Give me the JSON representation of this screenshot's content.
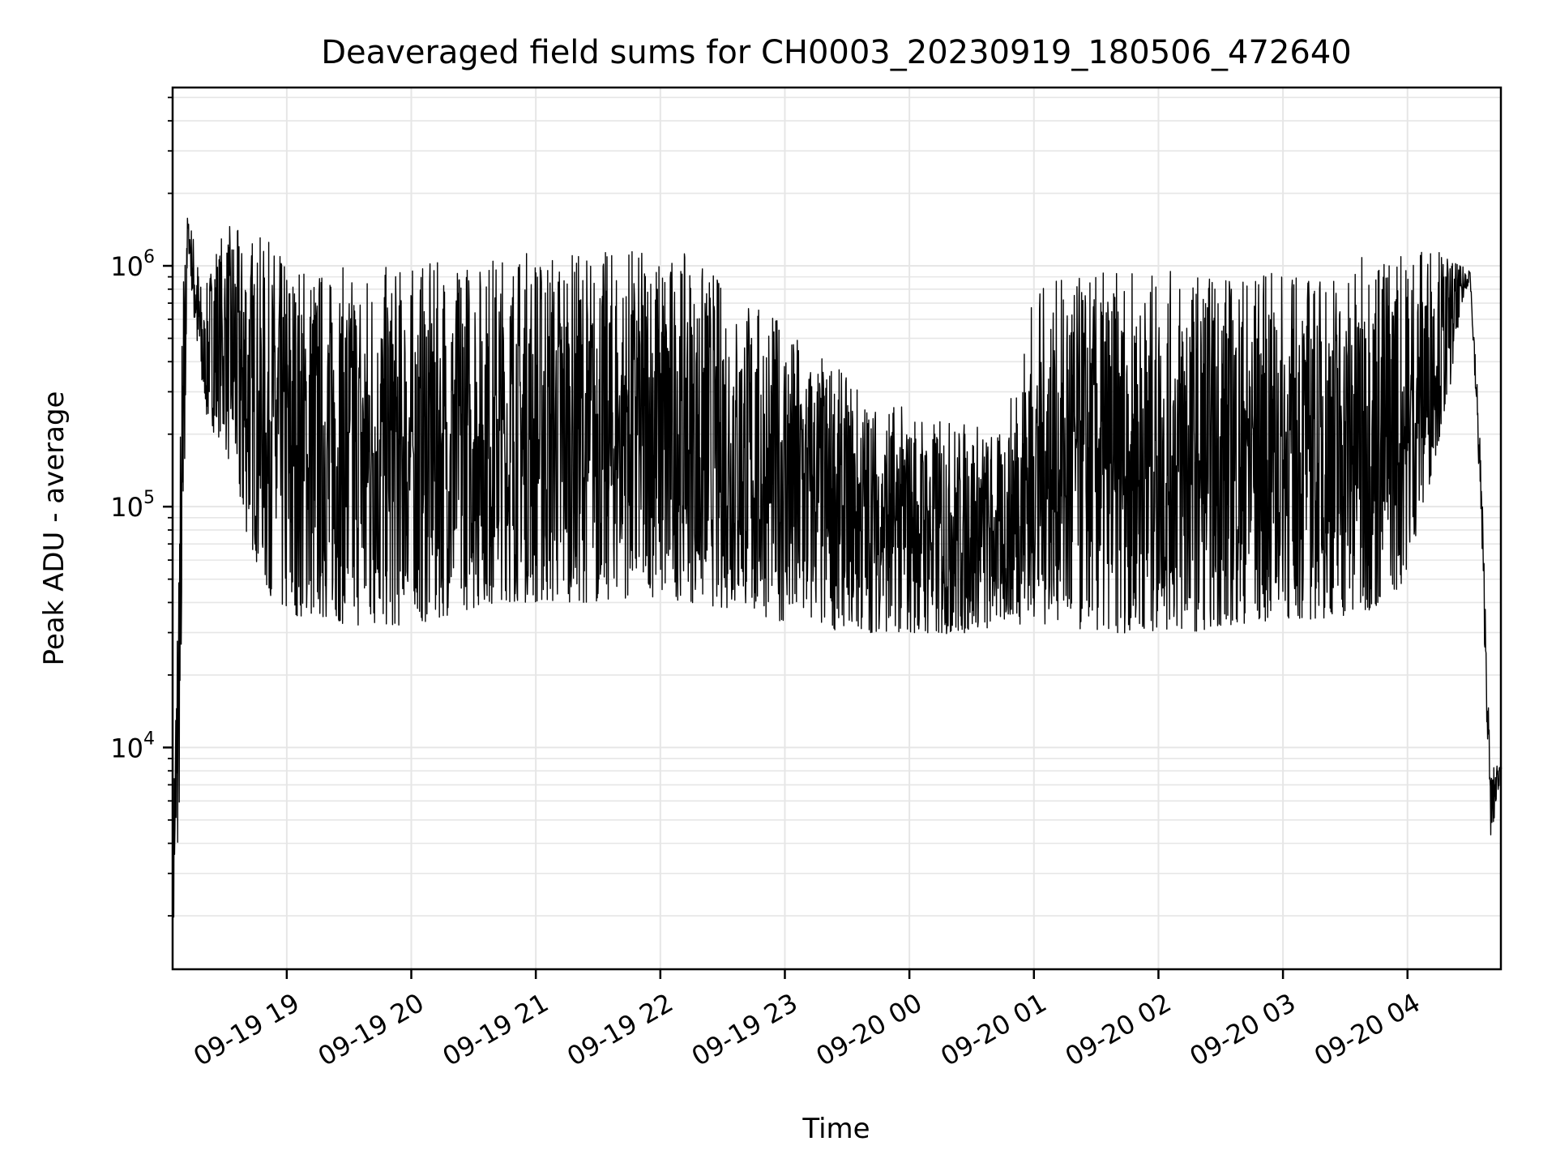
{
  "chart_data": {
    "type": "line",
    "title": "Deaveraged field sums for CH0003_20230919_180506_472640",
    "xlabel": "Time",
    "ylabel": "Peak ADU - average",
    "yscale": "log",
    "grid": true,
    "line_color": "#000000",
    "grid_color": "#e6e6e6",
    "xlim": [
      "2023-09-19 18:05",
      "2023-09-20 04:45"
    ],
    "ylim": [
      1200,
      5500000
    ],
    "xticks": [
      {
        "value": "2023-09-19 19:00",
        "label": "09-19 19"
      },
      {
        "value": "2023-09-19 20:00",
        "label": "09-19 20"
      },
      {
        "value": "2023-09-19 21:00",
        "label": "09-19 21"
      },
      {
        "value": "2023-09-19 22:00",
        "label": "09-19 22"
      },
      {
        "value": "2023-09-19 23:00",
        "label": "09-19 23"
      },
      {
        "value": "2023-09-20 00:00",
        "label": "09-20 00"
      },
      {
        "value": "2023-09-20 01:00",
        "label": "09-20 01"
      },
      {
        "value": "2023-09-20 02:00",
        "label": "09-20 02"
      },
      {
        "value": "2023-09-20 03:00",
        "label": "09-20 03"
      },
      {
        "value": "2023-09-20 04:00",
        "label": "09-20 04"
      }
    ],
    "yticks": [
      {
        "value": 10000,
        "base": "10",
        "exp": "4"
      },
      {
        "value": 100000,
        "base": "10",
        "exp": "5"
      },
      {
        "value": 1000000,
        "base": "10",
        "exp": "6"
      }
    ],
    "series": [
      {
        "x": [
          "2023-09-19 18:05",
          "2023-09-19 18:07",
          "2023-09-19 18:10",
          "2023-09-19 18:12",
          "2023-09-19 18:15",
          "2023-09-19 18:20",
          "2023-09-19 18:25",
          "2023-09-19 18:30",
          "2023-09-19 18:40",
          "2023-09-19 18:50",
          "2023-09-19 19:00",
          "2023-09-19 19:15",
          "2023-09-19 19:30",
          "2023-09-19 19:45",
          "2023-09-19 20:00",
          "2023-09-19 20:15",
          "2023-09-19 20:30",
          "2023-09-19 20:45",
          "2023-09-19 21:00",
          "2023-09-19 21:15",
          "2023-09-19 21:30",
          "2023-09-19 21:45",
          "2023-09-19 22:00",
          "2023-09-19 22:15",
          "2023-09-19 22:30",
          "2023-09-19 22:45",
          "2023-09-19 23:00",
          "2023-09-19 23:15",
          "2023-09-19 23:30",
          "2023-09-19 23:45",
          "2023-09-20 00:00",
          "2023-09-20 00:15",
          "2023-09-20 00:30",
          "2023-09-20 00:45",
          "2023-09-20 01:00",
          "2023-09-20 01:15",
          "2023-09-20 01:30",
          "2023-09-20 01:45",
          "2023-09-20 02:00",
          "2023-09-20 02:15",
          "2023-09-20 02:30",
          "2023-09-20 02:45",
          "2023-09-20 03:00",
          "2023-09-20 03:15",
          "2023-09-20 03:30",
          "2023-09-20 03:45",
          "2023-09-20 04:00",
          "2023-09-20 04:10",
          "2023-09-20 04:20",
          "2023-09-20 04:25",
          "2023-09-20 04:30",
          "2023-09-20 04:35",
          "2023-09-20 04:40",
          "2023-09-20 04:45"
        ],
        "upper": [
          6000,
          30000,
          1000000,
          1600000,
          1400000,
          700000,
          1300000,
          1500000,
          1400000,
          1300000,
          1100000,
          1000000,
          1000000,
          1000000,
          1000000,
          1050000,
          1100000,
          1150000,
          1200000,
          1200000,
          1150000,
          1200000,
          1200000,
          1100000,
          900000,
          700000,
          600000,
          450000,
          350000,
          280000,
          260000,
          230000,
          230000,
          200000,
          800000,
          900000,
          950000,
          950000,
          950000,
          950000,
          950000,
          950000,
          950000,
          950000,
          1000000,
          1200000,
          1200000,
          1300000,
          1100000,
          1000000,
          1000000,
          200000,
          8000,
          9000
        ],
        "lower": [
          1600,
          2500,
          30000,
          1400000,
          600000,
          250000,
          200000,
          180000,
          80000,
          45000,
          35000,
          35000,
          32000,
          32000,
          32000,
          35000,
          38000,
          40000,
          40000,
          40000,
          40000,
          42000,
          42000,
          40000,
          38000,
          36000,
          33000,
          32000,
          30000,
          30000,
          30000,
          29000,
          30000,
          32000,
          33000,
          31000,
          29000,
          30000,
          30000,
          30000,
          32000,
          33000,
          34000,
          34000,
          35000,
          38000,
          50000,
          120000,
          300000,
          600000,
          900000,
          100000,
          4000,
          8000
        ]
      }
    ]
  }
}
